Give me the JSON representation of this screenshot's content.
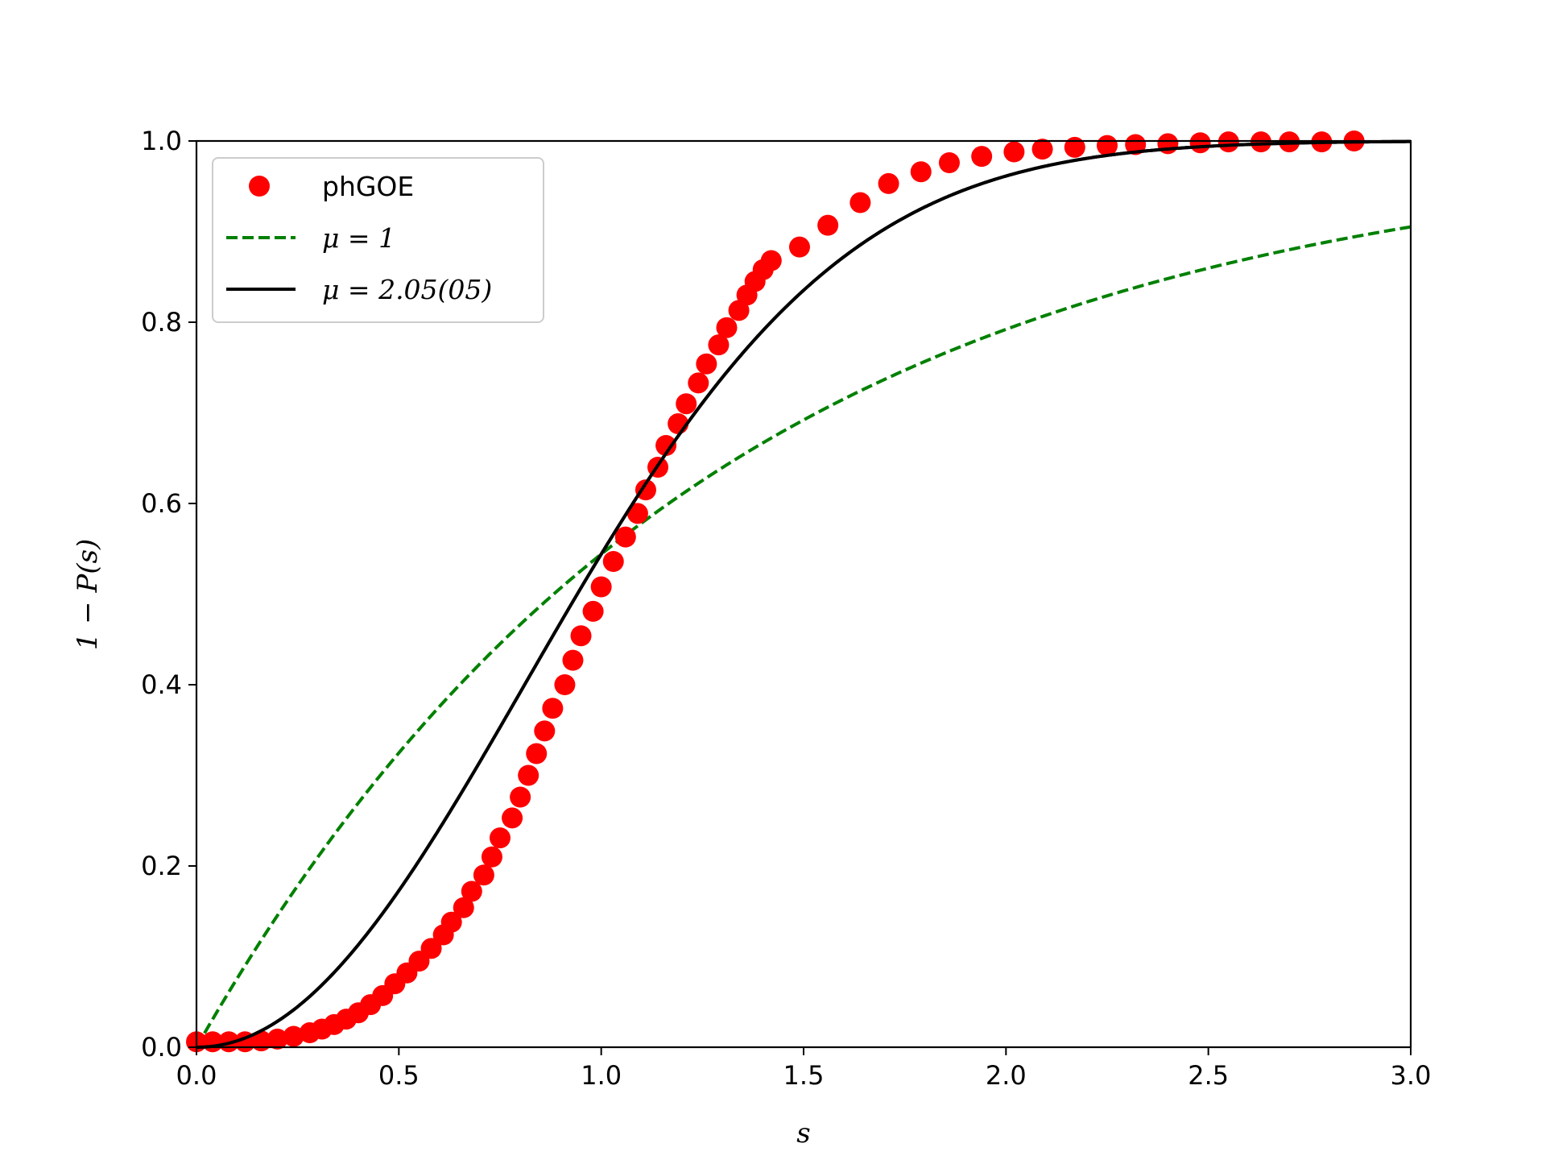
{
  "chart_data": {
    "type": "scatter",
    "xlabel": "s",
    "ylabel": "1 − P(s)",
    "xlim": [
      0.0,
      3.0
    ],
    "ylim": [
      0.0,
      1.0
    ],
    "xticks": [
      "0.0",
      "0.5",
      "1.0",
      "1.5",
      "2.0",
      "2.5",
      "3.0"
    ],
    "yticks": [
      "0.0",
      "0.2",
      "0.4",
      "0.6",
      "0.8",
      "1.0"
    ],
    "grid": false,
    "legend_position": "top-left",
    "series": [
      {
        "name": "phGOE",
        "style": "markers",
        "color": "#ff0000",
        "points": [
          [
            0.0,
            0.006
          ],
          [
            0.04,
            0.006
          ],
          [
            0.08,
            0.006
          ],
          [
            0.12,
            0.006
          ],
          [
            0.16,
            0.007
          ],
          [
            0.2,
            0.009
          ],
          [
            0.24,
            0.012
          ],
          [
            0.28,
            0.016
          ],
          [
            0.31,
            0.02
          ],
          [
            0.34,
            0.025
          ],
          [
            0.37,
            0.031
          ],
          [
            0.4,
            0.038
          ],
          [
            0.43,
            0.047
          ],
          [
            0.46,
            0.057
          ],
          [
            0.49,
            0.07
          ],
          [
            0.52,
            0.082
          ],
          [
            0.55,
            0.095
          ],
          [
            0.58,
            0.109
          ],
          [
            0.61,
            0.124
          ],
          [
            0.63,
            0.138
          ],
          [
            0.66,
            0.154
          ],
          [
            0.68,
            0.172
          ],
          [
            0.71,
            0.19
          ],
          [
            0.73,
            0.21
          ],
          [
            0.75,
            0.231
          ],
          [
            0.78,
            0.253
          ],
          [
            0.8,
            0.276
          ],
          [
            0.82,
            0.3
          ],
          [
            0.84,
            0.324
          ],
          [
            0.86,
            0.349
          ],
          [
            0.88,
            0.374
          ],
          [
            0.91,
            0.4
          ],
          [
            0.93,
            0.427
          ],
          [
            0.95,
            0.454
          ],
          [
            0.98,
            0.481
          ],
          [
            1.0,
            0.508
          ],
          [
            1.03,
            0.536
          ],
          [
            1.06,
            0.563
          ],
          [
            1.09,
            0.589
          ],
          [
            1.11,
            0.615
          ],
          [
            1.14,
            0.64
          ],
          [
            1.16,
            0.664
          ],
          [
            1.19,
            0.688
          ],
          [
            1.21,
            0.71
          ],
          [
            1.24,
            0.733
          ],
          [
            1.26,
            0.754
          ],
          [
            1.29,
            0.775
          ],
          [
            1.31,
            0.794
          ],
          [
            1.34,
            0.813
          ],
          [
            1.36,
            0.83
          ],
          [
            1.38,
            0.845
          ],
          [
            1.4,
            0.858
          ],
          [
            1.42,
            0.868
          ],
          [
            1.49,
            0.883
          ],
          [
            1.56,
            0.907
          ],
          [
            1.64,
            0.932
          ],
          [
            1.71,
            0.953
          ],
          [
            1.79,
            0.966
          ],
          [
            1.86,
            0.976
          ],
          [
            1.94,
            0.983
          ],
          [
            2.02,
            0.988
          ],
          [
            2.09,
            0.991
          ],
          [
            2.17,
            0.993
          ],
          [
            2.25,
            0.995
          ],
          [
            2.32,
            0.996
          ],
          [
            2.4,
            0.997
          ],
          [
            2.48,
            0.998
          ],
          [
            2.55,
            0.999
          ],
          [
            2.63,
            0.999
          ],
          [
            2.7,
            0.999
          ],
          [
            2.78,
            0.999
          ],
          [
            2.86,
            1.0
          ]
        ]
      },
      {
        "name": "μ = 1",
        "style": "dashed",
        "color": "#008000",
        "formula": "1 - exp(-pi*s^2/4)",
        "mu": 1,
        "x_range": [
          0.0,
          3.0
        ]
      },
      {
        "name": "μ = 2.05(05)",
        "style": "solid",
        "color": "#000000",
        "formula": "1 - exp(-pi*s^2.05/4)",
        "mu": 2.05,
        "x_range": [
          0.0,
          3.0
        ]
      }
    ]
  }
}
